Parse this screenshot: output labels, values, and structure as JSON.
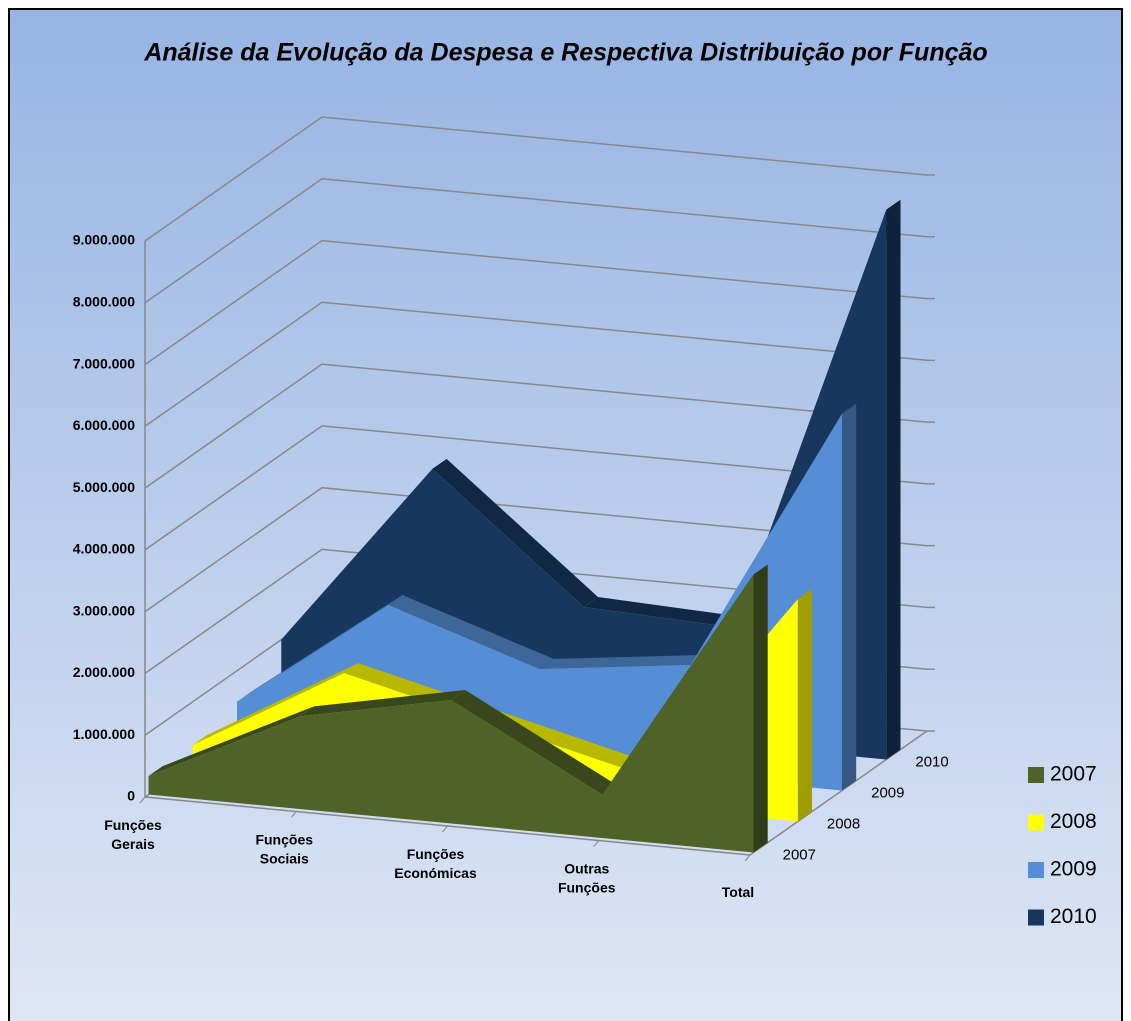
{
  "chart_data": {
    "type": "area3d",
    "title": "Análise da Evolução da Despesa e Respectiva Distribuição por Função",
    "categories": [
      "Funções Gerais",
      "Funções Sociais",
      "Funções Económicas",
      "Outras Funções",
      "Total"
    ],
    "series": [
      {
        "name": "2007",
        "color": "#4f6228",
        "values": [
          300000,
          1500000,
          2000000,
          700000,
          4500000
        ]
      },
      {
        "name": "2008",
        "color": "#ffff00",
        "values": [
          300000,
          1700000,
          1100000,
          500000,
          3600000
        ]
      },
      {
        "name": "2009",
        "color": "#558ed5",
        "values": [
          500000,
          2300000,
          1500000,
          1800000,
          6100000
        ]
      },
      {
        "name": "2010",
        "color": "#17375e",
        "values": [
          1000000,
          4000000,
          2000000,
          1900000,
          8900000
        ]
      }
    ],
    "ylim": [
      0,
      9000000
    ],
    "yticks": [
      0,
      {
        "value": 1000000,
        "label": "1.000.000"
      },
      {
        "value": 2000000,
        "label": "2.000.000"
      },
      {
        "value": 3000000,
        "label": "3.000.000"
      },
      {
        "value": 4000000,
        "label": "4.000.000"
      },
      {
        "value": 5000000,
        "label": "5.000.000"
      },
      {
        "value": 6000000,
        "label": "6.000.000"
      },
      {
        "value": 7000000,
        "label": "7.000.000"
      },
      {
        "value": 8000000,
        "label": "8.000.000"
      },
      {
        "value": 9000000,
        "label": "9.000.000"
      }
    ],
    "grid": true,
    "legend": "right"
  }
}
